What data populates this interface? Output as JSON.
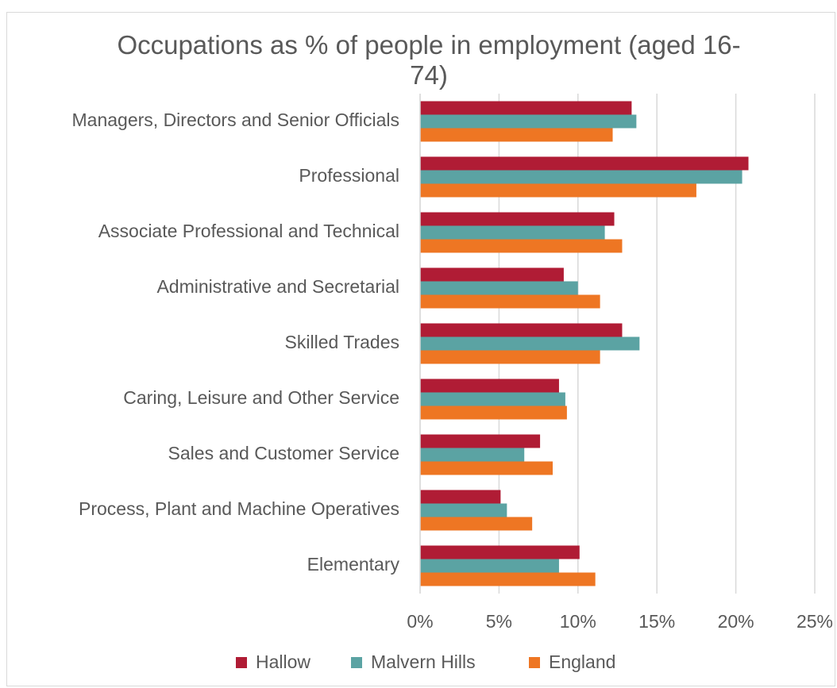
{
  "chart_data": {
    "type": "hbar",
    "title": "Occupations as % of people in employment (aged 16-74)",
    "categories": [
      "Managers, Directors and Senior Officials",
      "Professional",
      "Associate Professional and Technical",
      "Administrative and Secretarial",
      "Skilled Trades",
      "Caring, Leisure and Other Service",
      "Sales and Customer Service",
      "Process, Plant and Machine Operatives",
      "Elementary"
    ],
    "series": [
      {
        "name": "Hallow",
        "color": "#b01c35",
        "values": [
          13.4,
          20.8,
          12.3,
          9.1,
          12.8,
          8.8,
          7.6,
          5.1,
          10.1
        ]
      },
      {
        "name": "Malvern Hills",
        "color": "#5ba3a3",
        "values": [
          13.7,
          20.4,
          11.7,
          10.0,
          13.9,
          9.2,
          6.6,
          5.5,
          8.8
        ]
      },
      {
        "name": "England",
        "color": "#ee7623",
        "values": [
          12.2,
          17.5,
          12.8,
          11.4,
          11.4,
          9.3,
          8.4,
          7.1,
          11.1
        ]
      }
    ],
    "xlim": [
      0,
      25
    ],
    "xticks": [
      {
        "value": 0,
        "label": "0%"
      },
      {
        "value": 5,
        "label": "5%"
      },
      {
        "value": 10,
        "label": "10%"
      },
      {
        "value": 15,
        "label": "15%"
      },
      {
        "value": 20,
        "label": "20%"
      },
      {
        "value": 25,
        "label": "25%"
      }
    ],
    "grid": true,
    "legend": "bottom"
  }
}
